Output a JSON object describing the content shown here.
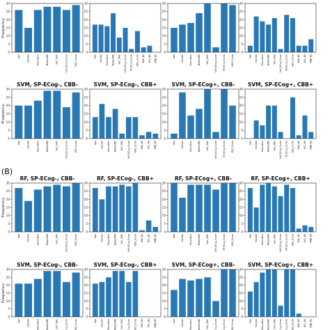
{
  "section_label": "(B)",
  "colors": {
    "bar": "#2878b5",
    "axis": "#222222"
  },
  "chart_data": [
    {
      "type": "bar",
      "title": "",
      "ylabel": "Frequency",
      "ylim": [
        0,
        30
      ],
      "yticks": [
        0,
        5,
        10,
        15,
        20,
        25,
        30
      ],
      "categories": [
        "Age",
        "Gender",
        "Education",
        "NamesMD",
        "Self_SMC",
        "Self_ECog_Score",
        "GDS_Score"
      ],
      "values": [
        26,
        15,
        26,
        28,
        28,
        26,
        29
      ]
    },
    {
      "type": "bar",
      "title": "",
      "ylabel": "",
      "ylim": [
        0,
        30
      ],
      "yticks": [
        0,
        5,
        10,
        15,
        20,
        25,
        30
      ],
      "categories": [
        "Age",
        "Gender",
        "Education",
        "NamesMD",
        "Self_SMC",
        "Self_ECog_Score",
        "SP_ECog_Score",
        "GDS_Score",
        "DAK_BS",
        "OCL_BS",
        "ONB_BS"
      ],
      "values": [
        17,
        17,
        16,
        24,
        9,
        15,
        2,
        13,
        3,
        4,
        0
      ]
    },
    {
      "type": "bar",
      "title": "",
      "ylabel": "",
      "ylim": [
        0,
        30
      ],
      "yticks": [
        0,
        5,
        10,
        15,
        20,
        25,
        30
      ],
      "categories": [
        "Age",
        "Gender",
        "Education",
        "NamesMD",
        "Self_SMC",
        "Self_ECog_Score",
        "SP_ECog_Score",
        "GDS_Score"
      ],
      "values": [
        15,
        17,
        18,
        24,
        30,
        3,
        30,
        29
      ]
    },
    {
      "type": "bar",
      "title": "",
      "ylabel": "",
      "ylim": [
        0,
        30
      ],
      "yticks": [
        0,
        5,
        10,
        15,
        20,
        25,
        30
      ],
      "categories": [
        "Age",
        "Gender",
        "Education",
        "NamesMD",
        "Self_SMC",
        "Self_ECog_Score",
        "SP_ECog_Score",
        "GDS_Score",
        "DAK_BS",
        "OCL_BS",
        "ONB_BS"
      ],
      "values": [
        4,
        22,
        19,
        17,
        21,
        2,
        23,
        21,
        4,
        4,
        8
      ]
    },
    {
      "type": "bar",
      "title": "SVM, SP-ECog-, CBB-",
      "ylabel": "Frequency",
      "ylim": [
        0,
        30
      ],
      "yticks": [
        0,
        5,
        10,
        15,
        20,
        25,
        30
      ],
      "categories": [
        "Age",
        "Gender",
        "Education",
        "NamesMD",
        "Self_SMC",
        "Self_ECog_Score",
        "GDS_Score"
      ],
      "values": [
        20,
        20,
        23,
        29,
        29,
        19,
        28
      ]
    },
    {
      "type": "bar",
      "title": "SVM, SP-ECog-, CBB+",
      "ylabel": "",
      "ylim": [
        0,
        30
      ],
      "yticks": [
        0,
        5,
        10,
        15,
        20,
        25,
        30
      ],
      "categories": [
        "Age",
        "Gender",
        "Education",
        "NamesMD",
        "Self_SMC",
        "Self_ECog_Score",
        "GDS_Score",
        "DAK_BS",
        "OCL_BS",
        "ONB_BS"
      ],
      "values": [
        13,
        21,
        13,
        18,
        3,
        13,
        13,
        2,
        4,
        3
      ]
    },
    {
      "type": "bar",
      "title": "SVM, SP-ECog+, CBB-",
      "ylabel": "",
      "ylim": [
        0,
        30
      ],
      "yticks": [
        0,
        5,
        10,
        15,
        20,
        25,
        30
      ],
      "categories": [
        "Age",
        "Gender",
        "Education",
        "NamesMD",
        "Self_SMC",
        "Self_ECog_Score",
        "SP_ECog_Score",
        "GDS_Score"
      ],
      "values": [
        3,
        28,
        14,
        18,
        30,
        4,
        30,
        20
      ]
    },
    {
      "type": "bar",
      "title": "SVM, SP-ECog+, CBB+",
      "ylabel": "",
      "ylim": [
        0,
        30
      ],
      "yticks": [
        0,
        5,
        10,
        15,
        20,
        25,
        30
      ],
      "categories": [
        "Age",
        "Gender",
        "Education",
        "NamesMD",
        "Self_SMC",
        "Self_ECog_Score",
        "SP_ECog_Score",
        "GDS_Score",
        "DAK_BS",
        "OCL_BS",
        "ONB_BS"
      ],
      "values": [
        0,
        11,
        8,
        20,
        20,
        4,
        0,
        25,
        2,
        14,
        4
      ]
    },
    {
      "type": "bar",
      "title": "RF, SP-ECog-, CBB-",
      "ylabel": "Frequency",
      "ylim": [
        0,
        30
      ],
      "yticks": [
        0,
        5,
        10,
        15,
        20,
        25,
        30
      ],
      "categories": [
        "Age",
        "Gender",
        "Education",
        "NamesMD",
        "Self_SMC",
        "Self_ECog_Score",
        "GDS_Score"
      ],
      "values": [
        27,
        19,
        26,
        28,
        29,
        28,
        30
      ]
    },
    {
      "type": "bar",
      "title": "RF, SP-ECog-, CBB+",
      "ylabel": "",
      "ylim": [
        0,
        30
      ],
      "yticks": [
        0,
        5,
        10,
        15,
        20,
        25,
        30
      ],
      "categories": [
        "Age",
        "Gender",
        "Education",
        "NamesMD",
        "Self_SMC",
        "Self_ECog_Score",
        "GDS_Score",
        "DAK_BS",
        "OCL_BS",
        "ONB_BS"
      ],
      "values": [
        27,
        20,
        28,
        28,
        29,
        28,
        30,
        1,
        7,
        3
      ]
    },
    {
      "type": "bar",
      "title": "RF, SP-ECog+, CBB-",
      "ylabel": "",
      "ylim": [
        0,
        30
      ],
      "yticks": [
        0,
        5,
        10,
        15,
        20,
        25,
        30
      ],
      "categories": [
        "Age",
        "Gender",
        "Education",
        "NamesMD",
        "Self_SMC",
        "Self_ECog_Score",
        "SP_ECog_Score",
        "GDS_Score"
      ],
      "values": [
        30,
        21,
        29,
        29,
        29,
        26,
        30,
        30
      ]
    },
    {
      "type": "bar",
      "title": "RF, SP-ECog+, CBB+",
      "ylabel": "",
      "ylim": [
        0,
        30
      ],
      "yticks": [
        0,
        5,
        10,
        15,
        20,
        25,
        30
      ],
      "categories": [
        "Age",
        "Gender",
        "Education",
        "NamesMD",
        "Self_SMC",
        "Self_ECog_Score",
        "SP_ECog_Score",
        "GDS_Score",
        "DAK_BS",
        "OCL_BS",
        "ONB_BS"
      ],
      "values": [
        27,
        15,
        29,
        30,
        28,
        22,
        29,
        27,
        2,
        4,
        3
      ]
    },
    {
      "type": "bar",
      "title": "SVM, SP-ECog-, CBB-",
      "ylabel": "Frequency",
      "ylim": [
        0,
        30
      ],
      "yticks": [
        0,
        5,
        10,
        15,
        20,
        25,
        30
      ],
      "categories": [
        "Age",
        "Gender",
        "Education",
        "NamesMD",
        "Self_SMC",
        "Self_ECog_Score",
        "GDS_Score"
      ],
      "values": [
        21,
        21,
        24,
        29,
        29,
        22,
        28
      ]
    },
    {
      "type": "bar",
      "title": "SVM, SP-ECog-, CBB+",
      "ylabel": "",
      "ylim": [
        0,
        30
      ],
      "yticks": [
        0,
        5,
        10,
        15,
        20,
        25,
        30
      ],
      "categories": [
        "Age",
        "Gender",
        "Education",
        "NamesMD",
        "Self_SMC",
        "Self_ECog_Score",
        "GDS_Score",
        "DAK_BS",
        "OCL_BS",
        "ONB_BS"
      ],
      "values": [
        21,
        22,
        25,
        29,
        29,
        22,
        29,
        0,
        0,
        0
      ]
    },
    {
      "type": "bar",
      "title": "SVM, SP-ECog+, CBB-",
      "ylabel": "",
      "ylim": [
        0,
        30
      ],
      "yticks": [
        0,
        5,
        10,
        15,
        20,
        25,
        30
      ],
      "categories": [
        "Age",
        "Gender",
        "Education",
        "NamesMD",
        "Self_SMC",
        "Self_ECog_Score",
        "SP_ECog_Score",
        "GDS_Score"
      ],
      "values": [
        17,
        24,
        23,
        24,
        25,
        10,
        30,
        30
      ]
    },
    {
      "type": "bar",
      "title": "SVM, SP-ECog+, CBB+",
      "ylabel": "",
      "ylim": [
        0,
        30
      ],
      "yticks": [
        0,
        5,
        10,
        15,
        20,
        25,
        30
      ],
      "categories": [
        "Age",
        "Gender",
        "Education",
        "NamesMD",
        "Self_SMC",
        "Self_ECog_Score",
        "SP_ECog_Score",
        "GDS_Score",
        "DAK_BS",
        "OCL_BS",
        "ONB_BS"
      ],
      "values": [
        16,
        22,
        28,
        30,
        30,
        7,
        30,
        30,
        2,
        0,
        0
      ]
    }
  ]
}
